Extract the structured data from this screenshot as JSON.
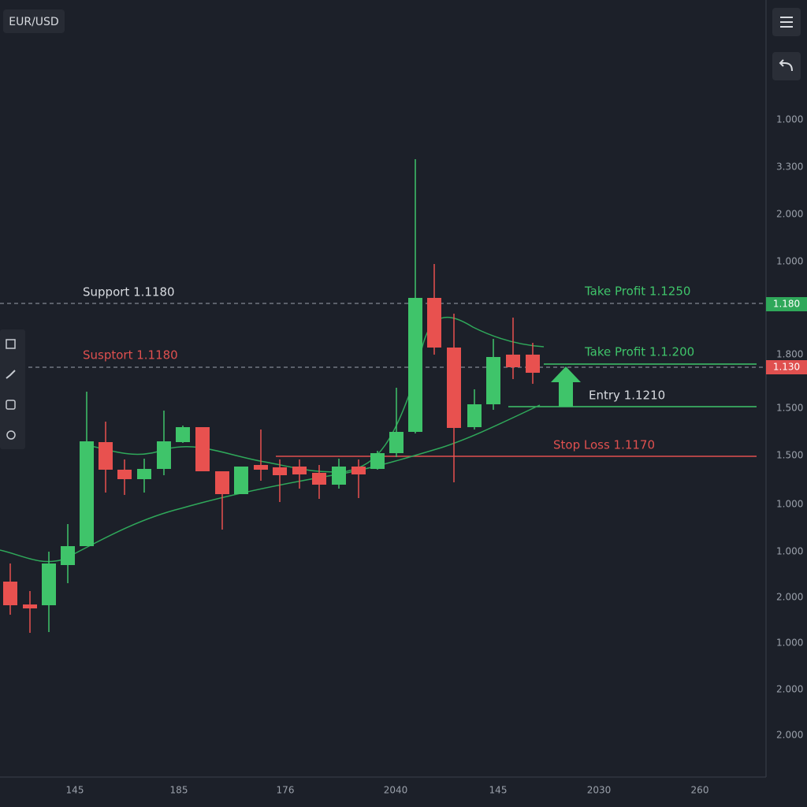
{
  "header": {
    "symbol": "EUR/USD"
  },
  "price_axis": [
    "1.000",
    "3.300",
    "2.000",
    "1.000",
    "1.800",
    "1.500",
    "1.500",
    "1.000",
    "1.000",
    "2.000",
    "1.000",
    "2.000",
    "2.000"
  ],
  "price_tags": [
    "1.180",
    "1.130"
  ],
  "time_axis": [
    "145",
    "185",
    "176",
    "2040",
    "145",
    "2030",
    "260"
  ],
  "annotations": {
    "support_top": "Support 1.1180",
    "support_bottom": "Susptort 1.1180",
    "take_profit_1": "Take Profit 1.1250",
    "take_profit_2": "Take Profit 1.1.200",
    "entry": "Entry 1.1210",
    "stop_loss": "Stop Loss 1.1170"
  }
}
